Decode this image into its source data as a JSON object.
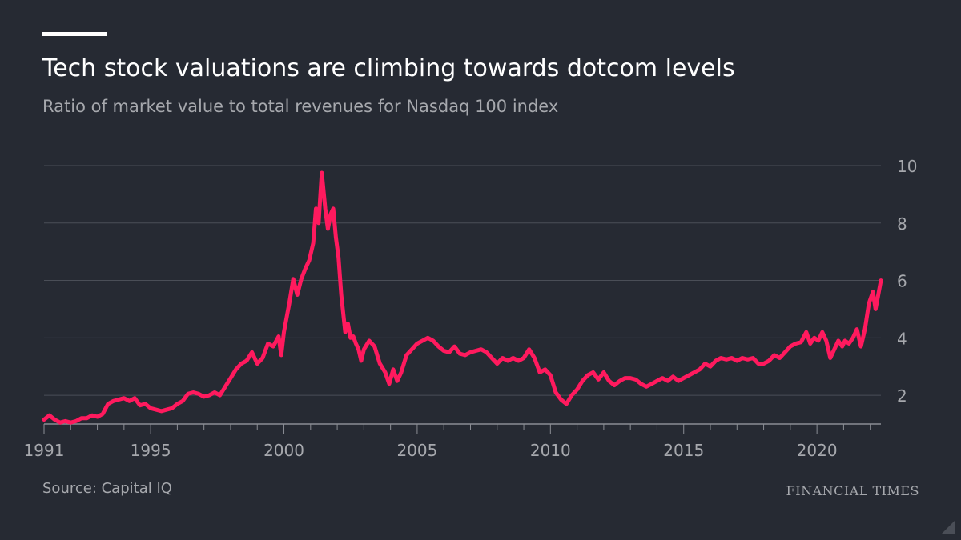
{
  "header": {
    "title": "Tech stock valuations are climbing towards dotcom levels",
    "subtitle": "Ratio of market value to total revenues for Nasdaq 100 index"
  },
  "footer": {
    "source": "Source: Capital IQ",
    "brand": "FINANCIAL TIMES"
  },
  "colors": {
    "background": "#262a33",
    "line": "#ff1a5e",
    "grid": "#4a4e57",
    "text_muted": "#a6a8ad"
  },
  "chart_data": {
    "type": "line",
    "xlim": [
      1991,
      2021.1
    ],
    "ylim": [
      1,
      10
    ],
    "grid": true,
    "x_ticks": [
      {
        "value": 1991,
        "label": "1991"
      },
      {
        "value": 1995,
        "label": "1995"
      },
      {
        "value": 2000,
        "label": "2000"
      },
      {
        "value": 2005,
        "label": "2005"
      },
      {
        "value": 2010,
        "label": "2010"
      },
      {
        "value": 2015,
        "label": "2015"
      },
      {
        "value": 2020,
        "label": "2020"
      }
    ],
    "y_ticks": [
      {
        "value": 2,
        "label": "2"
      },
      {
        "value": 4,
        "label": "4"
      },
      {
        "value": 6,
        "label": "6"
      },
      {
        "value": 8,
        "label": "8"
      },
      {
        "value": 10,
        "label": "10"
      }
    ],
    "series": [
      {
        "points": [
          [
            1991.0,
            1.15
          ],
          [
            1991.2,
            1.3
          ],
          [
            1991.4,
            1.15
          ],
          [
            1991.6,
            1.05
          ],
          [
            1991.8,
            1.1
          ],
          [
            1992.0,
            1.05
          ],
          [
            1992.2,
            1.1
          ],
          [
            1992.4,
            1.2
          ],
          [
            1992.6,
            1.2
          ],
          [
            1992.8,
            1.3
          ],
          [
            1993.0,
            1.25
          ],
          [
            1993.2,
            1.35
          ],
          [
            1993.4,
            1.7
          ],
          [
            1993.6,
            1.8
          ],
          [
            1993.8,
            1.85
          ],
          [
            1994.0,
            1.9
          ],
          [
            1994.2,
            1.8
          ],
          [
            1994.4,
            1.9
          ],
          [
            1994.6,
            1.65
          ],
          [
            1994.8,
            1.7
          ],
          [
            1995.0,
            1.55
          ],
          [
            1995.2,
            1.5
          ],
          [
            1995.4,
            1.45
          ],
          [
            1995.6,
            1.5
          ],
          [
            1995.8,
            1.55
          ],
          [
            1996.0,
            1.7
          ],
          [
            1996.2,
            1.8
          ],
          [
            1996.4,
            2.05
          ],
          [
            1996.6,
            2.1
          ],
          [
            1996.8,
            2.05
          ],
          [
            1997.0,
            1.95
          ],
          [
            1997.2,
            2.0
          ],
          [
            1997.4,
            2.1
          ],
          [
            1997.6,
            2.0
          ],
          [
            1997.8,
            2.3
          ],
          [
            1998.0,
            2.6
          ],
          [
            1998.2,
            2.9
          ],
          [
            1998.4,
            3.1
          ],
          [
            1998.6,
            3.2
          ],
          [
            1998.8,
            3.5
          ],
          [
            1999.0,
            3.1
          ],
          [
            1999.2,
            3.3
          ],
          [
            1999.4,
            3.8
          ],
          [
            1999.6,
            3.7
          ],
          [
            1999.8,
            4.05
          ],
          [
            1999.9,
            3.4
          ],
          [
            2000.0,
            4.2
          ],
          [
            2000.2,
            5.2
          ],
          [
            2000.35,
            6.05
          ],
          [
            2000.5,
            5.5
          ],
          [
            2000.65,
            6.05
          ],
          [
            2000.8,
            6.4
          ],
          [
            2000.95,
            6.7
          ],
          [
            2001.1,
            7.3
          ],
          [
            2001.2,
            8.5
          ],
          [
            2001.3,
            8.0
          ],
          [
            2001.42,
            9.75
          ],
          [
            2001.55,
            8.5
          ],
          [
            2001.65,
            7.8
          ],
          [
            2001.75,
            8.3
          ],
          [
            2001.85,
            8.5
          ],
          [
            2001.95,
            7.5
          ],
          [
            2002.05,
            6.8
          ],
          [
            2002.15,
            5.5
          ],
          [
            2002.3,
            4.2
          ],
          [
            2002.4,
            4.5
          ],
          [
            2002.5,
            4.0
          ],
          [
            2002.6,
            4.05
          ],
          [
            2002.7,
            3.8
          ],
          [
            2002.8,
            3.6
          ],
          [
            2002.9,
            3.2
          ],
          [
            2003.0,
            3.6
          ],
          [
            2003.2,
            3.9
          ],
          [
            2003.4,
            3.7
          ],
          [
            2003.6,
            3.1
          ],
          [
            2003.8,
            2.8
          ],
          [
            2003.95,
            2.4
          ],
          [
            2004.1,
            2.9
          ],
          [
            2004.25,
            2.5
          ],
          [
            2004.4,
            2.8
          ],
          [
            2004.6,
            3.4
          ],
          [
            2004.8,
            3.6
          ],
          [
            2005.0,
            3.8
          ],
          [
            2005.2,
            3.9
          ],
          [
            2005.4,
            4.0
          ],
          [
            2005.6,
            3.9
          ],
          [
            2005.8,
            3.7
          ],
          [
            2006.0,
            3.55
          ],
          [
            2006.2,
            3.5
          ],
          [
            2006.4,
            3.7
          ],
          [
            2006.6,
            3.45
          ],
          [
            2006.8,
            3.4
          ],
          [
            2007.0,
            3.5
          ],
          [
            2007.2,
            3.55
          ],
          [
            2007.4,
            3.6
          ],
          [
            2007.6,
            3.5
          ],
          [
            2007.8,
            3.3
          ],
          [
            2008.0,
            3.1
          ],
          [
            2008.2,
            3.3
          ],
          [
            2008.4,
            3.2
          ],
          [
            2008.6,
            3.3
          ],
          [
            2008.8,
            3.2
          ],
          [
            2009.0,
            3.3
          ],
          [
            2009.2,
            3.6
          ],
          [
            2009.4,
            3.3
          ],
          [
            2009.6,
            2.8
          ],
          [
            2009.8,
            2.9
          ],
          [
            2010.0,
            2.7
          ],
          [
            2010.2,
            2.1
          ],
          [
            2010.4,
            1.85
          ],
          [
            2010.6,
            1.7
          ],
          [
            2010.8,
            2.0
          ],
          [
            2011.0,
            2.2
          ],
          [
            2011.2,
            2.5
          ],
          [
            2011.4,
            2.7
          ],
          [
            2011.6,
            2.8
          ],
          [
            2011.8,
            2.55
          ],
          [
            2012.0,
            2.8
          ],
          [
            2012.2,
            2.5
          ],
          [
            2012.4,
            2.35
          ],
          [
            2012.6,
            2.5
          ],
          [
            2012.8,
            2.6
          ],
          [
            2013.0,
            2.6
          ],
          [
            2013.2,
            2.55
          ],
          [
            2013.4,
            2.4
          ],
          [
            2013.6,
            2.3
          ],
          [
            2013.8,
            2.4
          ],
          [
            2014.0,
            2.5
          ],
          [
            2014.2,
            2.6
          ],
          [
            2014.4,
            2.5
          ],
          [
            2014.6,
            2.65
          ],
          [
            2014.8,
            2.5
          ],
          [
            2015.0,
            2.6
          ],
          [
            2015.2,
            2.7
          ],
          [
            2015.4,
            2.8
          ],
          [
            2015.6,
            2.9
          ],
          [
            2015.8,
            3.1
          ],
          [
            2016.0,
            3.0
          ],
          [
            2016.2,
            3.2
          ],
          [
            2016.4,
            3.3
          ],
          [
            2016.6,
            3.25
          ],
          [
            2016.8,
            3.3
          ],
          [
            2017.0,
            3.2
          ],
          [
            2017.2,
            3.3
          ],
          [
            2017.4,
            3.25
          ],
          [
            2017.6,
            3.3
          ],
          [
            2017.8,
            3.1
          ],
          [
            2018.0,
            3.1
          ],
          [
            2018.2,
            3.2
          ],
          [
            2018.4,
            3.4
          ],
          [
            2018.6,
            3.3
          ],
          [
            2018.8,
            3.5
          ],
          [
            2019.0,
            3.7
          ],
          [
            2019.2,
            3.8
          ],
          [
            2019.4,
            3.85
          ],
          [
            2019.6,
            4.2
          ],
          [
            2019.75,
            3.8
          ],
          [
            2019.9,
            4.0
          ],
          [
            2020.05,
            3.9
          ],
          [
            2020.2,
            4.2
          ],
          [
            2020.35,
            3.9
          ],
          [
            2020.5,
            3.3
          ],
          [
            2020.65,
            3.6
          ],
          [
            2020.8,
            3.9
          ],
          [
            2020.95,
            3.7
          ],
          [
            2021.05,
            3.9
          ],
          [
            2021.2,
            3.8
          ],
          [
            2021.35,
            4.0
          ],
          [
            2021.5,
            4.3
          ],
          [
            2021.65,
            3.7
          ],
          [
            2021.8,
            4.3
          ],
          [
            2021.95,
            5.2
          ],
          [
            2022.1,
            5.6
          ],
          [
            2022.2,
            5.0
          ],
          [
            2022.3,
            5.5
          ],
          [
            2022.4,
            6.0
          ]
        ]
      }
    ]
  }
}
